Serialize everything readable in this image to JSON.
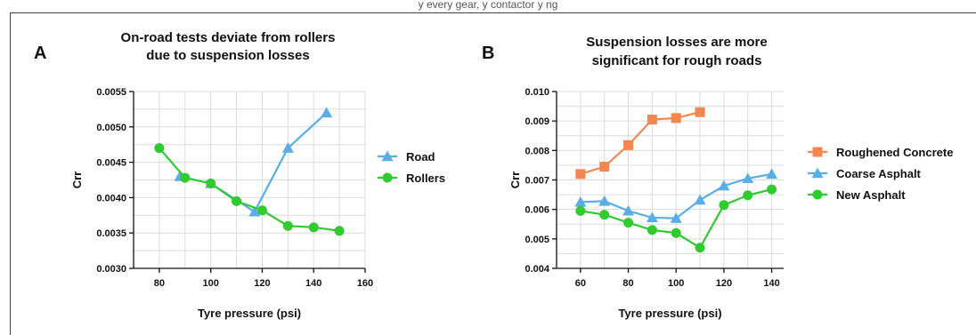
{
  "header_text": "y every gear, y contactor y ng",
  "chart_data": [
    {
      "panel_letter": "A",
      "type": "line",
      "title": [
        "On-road tests deviate from rollers",
        "due to suspension losses"
      ],
      "xlabel": "Tyre pressure (psi)",
      "ylabel": "Crr",
      "xlim": [
        70,
        160
      ],
      "ylim": [
        0.003,
        0.0055
      ],
      "xticks": [
        80,
        100,
        120,
        140,
        160
      ],
      "xtick_labels": [
        "80",
        "100",
        "120",
        "140",
        "160"
      ],
      "yticks": [
        0.003,
        0.0035,
        0.004,
        0.0045,
        0.005,
        0.0055
      ],
      "ytick_labels": [
        "0.0030",
        "0.0035",
        "0.0040",
        "0.0045",
        "0.0050",
        "0.0055"
      ],
      "grid": true,
      "legend_position": "right",
      "series": [
        {
          "name": "Road",
          "color": "#5aaee8",
          "marker": "triangle",
          "x": [
            88,
            100,
            117,
            130,
            145
          ],
          "y": [
            0.0043,
            0.0042,
            0.0038,
            0.0047,
            0.0052
          ]
        },
        {
          "name": "Rollers",
          "color": "#2fcb2f",
          "marker": "circle",
          "x": [
            80,
            90,
            100,
            110,
            120,
            130,
            140,
            150
          ],
          "y": [
            0.0047,
            0.00428,
            0.0042,
            0.00395,
            0.00382,
            0.0036,
            0.00358,
            0.00353
          ]
        }
      ]
    },
    {
      "panel_letter": "B",
      "type": "line",
      "title": [
        "Suspension losses are more",
        "significant for rough roads"
      ],
      "xlabel": "Tyre pressure (psi)",
      "ylabel": "Crr",
      "xlim": [
        50,
        145
      ],
      "ylim": [
        0.004,
        0.01
      ],
      "xticks": [
        60,
        80,
        100,
        120,
        140
      ],
      "xtick_labels": [
        "60",
        "80",
        "100",
        "120",
        "140"
      ],
      "yticks": [
        0.004,
        0.005,
        0.006,
        0.007,
        0.008,
        0.009,
        0.01
      ],
      "ytick_labels": [
        "0.004",
        "0.005",
        "0.006",
        "0.007",
        "0.008",
        "0.009",
        "0.010"
      ],
      "grid": true,
      "legend_position": "right",
      "series": [
        {
          "name": "Roughened Concrete",
          "color": "#f4874f",
          "marker": "square",
          "x": [
            60,
            70,
            80,
            90,
            100,
            110
          ],
          "y": [
            0.0072,
            0.00745,
            0.00818,
            0.00905,
            0.0091,
            0.0093
          ]
        },
        {
          "name": "Coarse Asphalt",
          "color": "#5aaee8",
          "marker": "triangle",
          "x": [
            60,
            70,
            80,
            90,
            100,
            110,
            120,
            130,
            140
          ],
          "y": [
            0.00625,
            0.00628,
            0.00595,
            0.00572,
            0.0057,
            0.00632,
            0.0068,
            0.00705,
            0.0072
          ]
        },
        {
          "name": "New Asphalt",
          "color": "#2fcb2f",
          "marker": "circle",
          "x": [
            60,
            70,
            80,
            90,
            100,
            110,
            120,
            130,
            140
          ],
          "y": [
            0.00595,
            0.00582,
            0.00555,
            0.0053,
            0.0052,
            0.0047,
            0.00615,
            0.00648,
            0.00668
          ]
        }
      ]
    }
  ]
}
